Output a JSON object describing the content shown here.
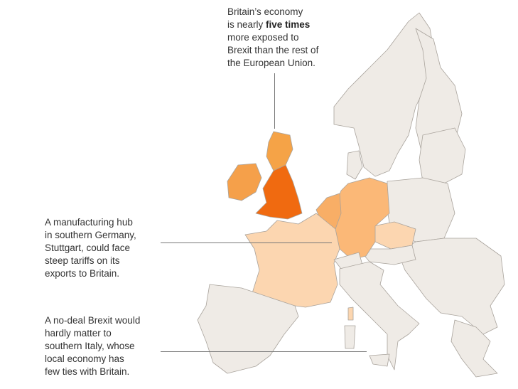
{
  "annotations": {
    "britain": {
      "line1": "Britain’s economy",
      "line2_pre": "is nearly ",
      "line2_bold": "five times",
      "line3": "more exposed to",
      "line4": "Brexit than the rest of",
      "line5": "the European Union."
    },
    "stuttgart": {
      "lines": [
        "A manufacturing hub",
        "in southern Germany,",
        "Stuttgart, could face",
        "steep tariffs on its",
        "exports to Britain."
      ]
    },
    "italy": {
      "lines": [
        "A no-deal Brexit would",
        "hardly matter to",
        "southern Italy, whose",
        "local economy has",
        "few ties with Britain."
      ]
    }
  },
  "colors": {
    "very_high": "#f06a10",
    "high": "#f5a04a",
    "medium": "#fbb877",
    "low": "#fcd6b0",
    "minimal": "#efebe6",
    "border": "#bbb5ae"
  },
  "regions_exposure": {
    "England": "very_high",
    "Scotland": "high",
    "Ireland": "high",
    "Benelux": "high",
    "Germany": "medium",
    "France": "low",
    "Czechia": "low",
    "Iberia": "minimal",
    "Italy": "minimal",
    "Scandinavia": "minimal",
    "Eastern Europe": "minimal"
  }
}
